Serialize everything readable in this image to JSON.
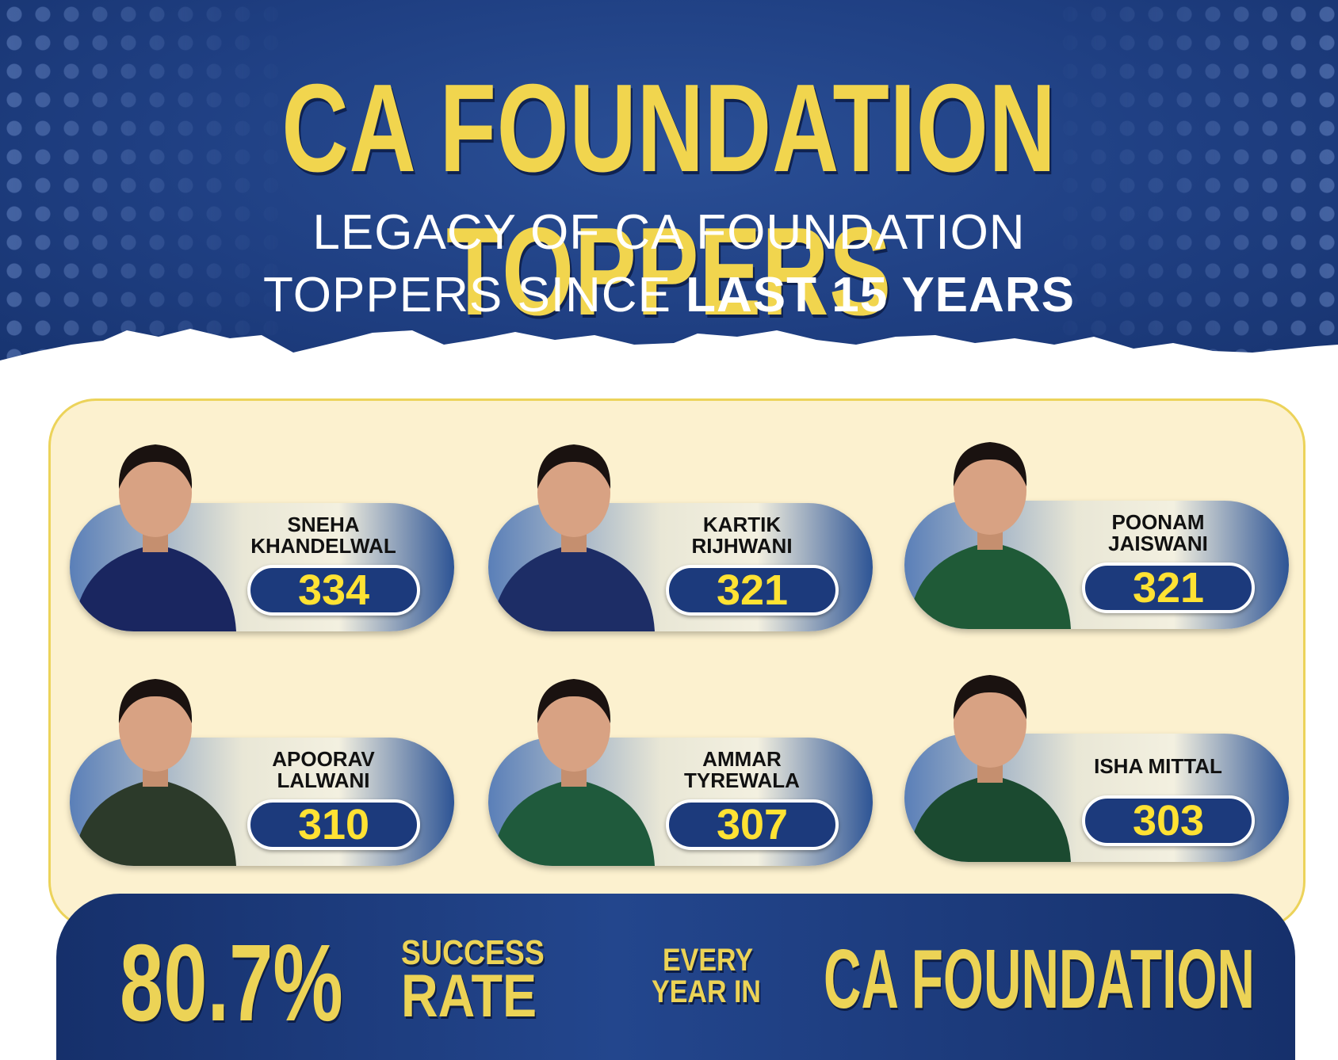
{
  "header": {
    "title": "CA FOUNDATION TOPPERS",
    "subtitle_line1": "LEGACY OF CA FOUNDATION",
    "subtitle_line2_normal": "TOPPERS SINCE ",
    "subtitle_line2_bold": "LAST 15 YEARS"
  },
  "toppers": [
    {
      "name_line1": "SNEHA",
      "name_line2": "KHANDELWAL",
      "score": "334",
      "shirt": "#1a2660"
    },
    {
      "name_line1": "KARTIK",
      "name_line2": "RIJHWANI",
      "score": "321",
      "shirt": "#1d2d66"
    },
    {
      "name_line1": "POONAM",
      "name_line2": "JAISWANI",
      "score": "321",
      "shirt": "#1f5a37"
    },
    {
      "name_line1": "APOORAV",
      "name_line2": "LALWANI",
      "score": "310",
      "shirt": "#2c3a2a"
    },
    {
      "name_line1": "AMMAR",
      "name_line2": "TYREWALA",
      "score": "307",
      "shirt": "#1f5a3c"
    },
    {
      "name_line1": "ISHA MITTAL",
      "name_line2": "",
      "score": "303",
      "shirt": "#1b4a30"
    }
  ],
  "footer": {
    "percent": "80.7%",
    "success": "SUCCESS",
    "rate": "RATE",
    "every": "EVERY",
    "year_in": "YEAR IN",
    "ca_foundation": "CA FOUNDATION"
  },
  "colors": {
    "navy": "#1f3f82",
    "gold": "#f1d54e",
    "cream": "#fcf1cf",
    "score_yellow": "#ffe233"
  }
}
